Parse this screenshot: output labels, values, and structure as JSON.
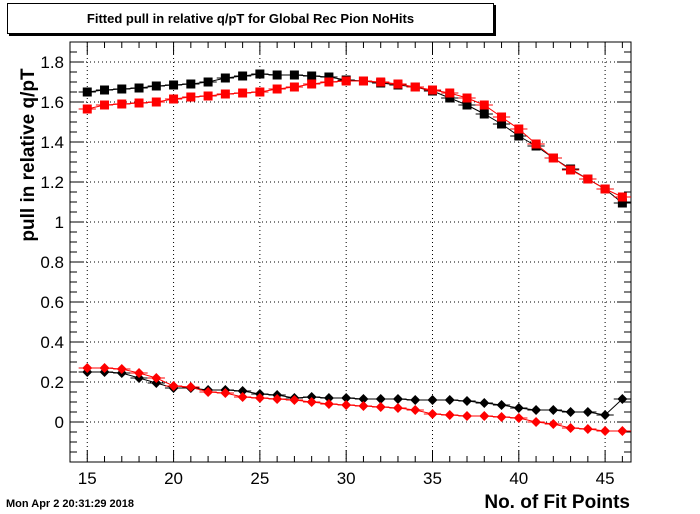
{
  "header": {
    "title": "Fitted pull in relative q/pT for Global Rec Pion NoHits",
    "timestamp": "Mon Apr  2 20:31:29 2018"
  },
  "chart_data": {
    "type": "scatter",
    "title": "Fitted pull in relative q/pT for Global Rec Pion NoHits",
    "xlabel": "No. of Fit Points",
    "ylabel": "pull in relative q/pT",
    "xlim": [
      14,
      46.5
    ],
    "ylim": [
      -0.2,
      1.9
    ],
    "xticks": [
      15,
      20,
      25,
      30,
      35,
      40,
      45
    ],
    "yticks": [
      0,
      0.2,
      0.4,
      0.6,
      0.8,
      1,
      1.2,
      1.4,
      1.6,
      1.8
    ],
    "grid": true,
    "legend": "none",
    "x": [
      15,
      16,
      17,
      18,
      19,
      20,
      21,
      22,
      23,
      24,
      25,
      26,
      27,
      28,
      29,
      30,
      31,
      32,
      33,
      34,
      35,
      36,
      37,
      38,
      39,
      40,
      41,
      42,
      43,
      44,
      45,
      46
    ],
    "series": [
      {
        "color": "#000000",
        "marker": "square",
        "values": [
          1.65,
          1.66,
          1.665,
          1.67,
          1.68,
          1.685,
          1.69,
          1.7,
          1.72,
          1.73,
          1.74,
          1.735,
          1.735,
          1.73,
          1.725,
          1.71,
          1.705,
          1.695,
          1.685,
          1.675,
          1.655,
          1.62,
          1.585,
          1.54,
          1.49,
          1.43,
          1.38,
          1.32,
          1.265,
          1.215,
          1.165,
          1.095
        ]
      },
      {
        "color": "#ff0000",
        "marker": "square",
        "values": [
          1.565,
          1.585,
          1.59,
          1.595,
          1.6,
          1.615,
          1.625,
          1.63,
          1.64,
          1.645,
          1.65,
          1.665,
          1.675,
          1.69,
          1.7,
          1.705,
          1.705,
          1.7,
          1.69,
          1.675,
          1.66,
          1.645,
          1.62,
          1.585,
          1.525,
          1.465,
          1.39,
          1.32,
          1.26,
          1.215,
          1.165,
          1.125
        ]
      },
      {
        "color": "#000000",
        "marker": "diamond",
        "values": [
          0.25,
          0.25,
          0.245,
          0.22,
          0.195,
          0.17,
          0.17,
          0.16,
          0.16,
          0.155,
          0.14,
          0.135,
          0.12,
          0.125,
          0.12,
          0.12,
          0.115,
          0.115,
          0.115,
          0.11,
          0.11,
          0.11,
          0.105,
          0.095,
          0.085,
          0.07,
          0.06,
          0.06,
          0.05,
          0.05,
          0.035,
          0.115
        ]
      },
      {
        "color": "#ff0000",
        "marker": "diamond",
        "values": [
          0.27,
          0.27,
          0.265,
          0.245,
          0.22,
          0.18,
          0.175,
          0.15,
          0.145,
          0.125,
          0.12,
          0.115,
          0.11,
          0.1,
          0.09,
          0.085,
          0.08,
          0.075,
          0.07,
          0.06,
          0.04,
          0.035,
          0.03,
          0.03,
          0.025,
          0.02,
          0.0,
          -0.01,
          -0.03,
          -0.035,
          -0.045,
          -0.045
        ]
      }
    ]
  }
}
